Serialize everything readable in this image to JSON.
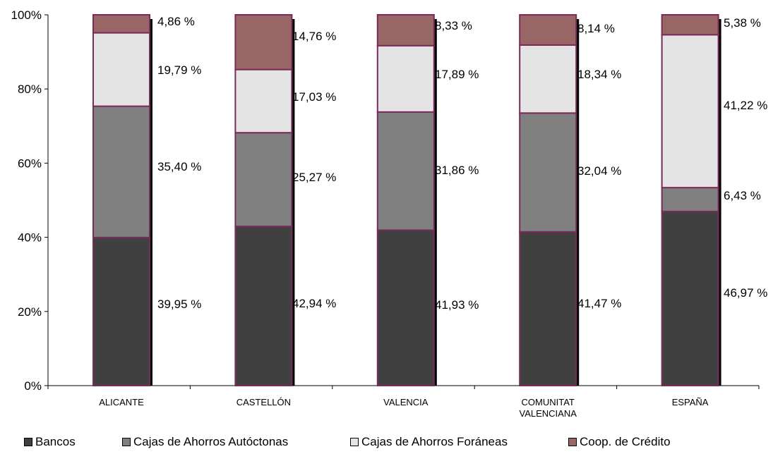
{
  "chart_data": {
    "type": "bar",
    "stacked": true,
    "percent": true,
    "categories": [
      [
        "ALICANTE"
      ],
      [
        "CASTELLÓN"
      ],
      [
        "VALENCIA"
      ],
      [
        "COMUNITAT",
        "VALENCIANA"
      ],
      [
        "ESPAÑA"
      ]
    ],
    "series": [
      {
        "name": "Bancos",
        "color": "#404040",
        "values": [
          39.95,
          42.94,
          41.93,
          41.47,
          46.97
        ],
        "labels": [
          "39,95 %",
          "42,94 %",
          "41,93 %",
          "41,47 %",
          "46,97 %"
        ]
      },
      {
        "name": "Cajas de Ahorros Autóctonas",
        "color": "#808080",
        "values": [
          35.4,
          25.27,
          31.86,
          32.04,
          6.43
        ],
        "labels": [
          "35,40 %",
          "25,27 %",
          "31,86 %",
          "32,04 %",
          "6,43 %"
        ]
      },
      {
        "name": "Cajas de Ahorros Foráneas",
        "color": "#e4e4e4",
        "values": [
          19.79,
          17.03,
          17.89,
          18.34,
          41.22
        ],
        "labels": [
          "19,79 %",
          "17,03 %",
          "17,89 %",
          "18,34 %",
          "41,22 %"
        ]
      },
      {
        "name": "Coop. de Crédito",
        "color": "#996666",
        "values": [
          4.86,
          14.76,
          8.33,
          8.14,
          5.38
        ],
        "labels": [
          "4,86 %",
          "14,76 %",
          "8,33 %",
          "8,14 %",
          "5,38 %"
        ]
      }
    ],
    "ylim": [
      0,
      100
    ],
    "yticks": [
      "0%",
      "20%",
      "40%",
      "60%",
      "80%",
      "100%"
    ],
    "bar_border_color": "#7a2b5a",
    "legend_position": "bottom",
    "grid": false
  }
}
